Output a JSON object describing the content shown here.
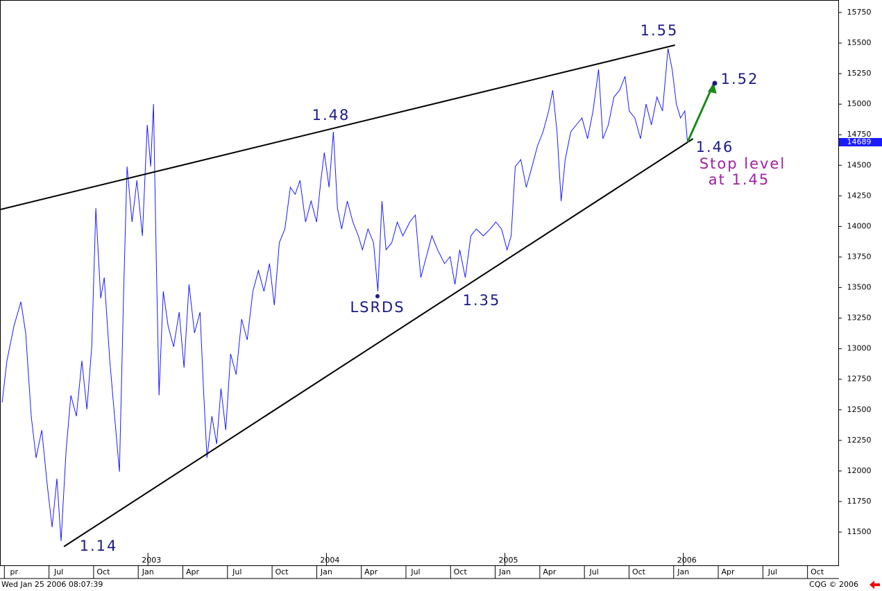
{
  "chart_data": {
    "type": "line",
    "series": [
      {
        "name": null,
        "color": "#1a1aff",
        "x": [
          2002.183,
          2002.21,
          2002.249,
          2002.288,
          2002.315,
          2002.346,
          2002.373,
          2002.405,
          2002.436,
          2002.463,
          2002.49,
          2002.513,
          2002.541,
          2002.568,
          2002.599,
          2002.63,
          2002.658,
          2002.685,
          2002.708,
          2002.735,
          2002.755,
          2002.786,
          2002.813,
          2002.84,
          2002.864,
          2002.883,
          2002.911,
          2002.938,
          2002.969,
          2002.996,
          2003.015,
          2003.031,
          2003.047,
          2003.062,
          2003.086,
          2003.113,
          2003.144,
          2003.175,
          2003.202,
          2003.23,
          2003.261,
          2003.292,
          2003.311,
          2003.331,
          2003.358,
          2003.385,
          2003.409,
          2003.436,
          2003.463,
          2003.494,
          2003.525,
          2003.556,
          2003.588,
          2003.619,
          2003.65,
          2003.681,
          2003.708,
          2003.736,
          2003.767,
          2003.798,
          2003.825,
          2003.852,
          2003.883,
          2003.914,
          2003.945,
          2003.969,
          2003.988,
          2004.015,
          2004.039,
          2004.062,
          2004.085,
          2004.117,
          2004.148,
          2004.179,
          2004.202,
          2004.233,
          2004.264,
          2004.288,
          2004.311,
          2004.334,
          2004.366,
          2004.397,
          2004.428,
          2004.467,
          2004.498,
          2004.529,
          2004.56,
          2004.591,
          2004.623,
          2004.662,
          2004.693,
          2004.72,
          2004.747,
          2004.778,
          2004.809,
          2004.84,
          2004.879,
          2004.918,
          2004.949,
          2004.981,
          2005.012,
          2005.035,
          2005.058,
          2005.089,
          2005.12,
          2005.152,
          2005.183,
          2005.214,
          2005.245,
          2005.268,
          2005.292,
          2005.315,
          2005.338,
          2005.369,
          2005.4,
          2005.432,
          2005.463,
          2005.494,
          2005.525,
          2005.549,
          2005.58,
          2005.611,
          2005.643,
          2005.673,
          2005.697,
          2005.728,
          2005.76,
          2005.791,
          2005.821,
          2005.852,
          2005.883,
          2005.914,
          2005.937,
          2005.961,
          2005.984,
          2006.008,
          2006.023
        ],
        "values": [
          12561,
          12901,
          13185,
          13384,
          13128,
          12448,
          12107,
          12334,
          11880,
          11540,
          11937,
          11426,
          12164,
          12618,
          12448,
          12901,
          12504,
          13015,
          14150,
          13412,
          13582,
          12901,
          12448,
          11994,
          13469,
          14490,
          14036,
          14377,
          13923,
          14831,
          14490,
          15001,
          13696,
          12618,
          13469,
          13185,
          13015,
          13299,
          12845,
          13526,
          13128,
          13299,
          12674,
          12107,
          12448,
          12221,
          12674,
          12334,
          12958,
          12788,
          13242,
          13072,
          13469,
          13639,
          13469,
          13696,
          13355,
          13866,
          13979,
          14320,
          14263,
          14377,
          14036,
          14207,
          14036,
          14377,
          14604,
          14320,
          14774,
          14150,
          13979,
          14207,
          14036,
          13923,
          13809,
          13979,
          13866,
          13469,
          14207,
          13809,
          13866,
          14036,
          13923,
          14036,
          14093,
          13582,
          13753,
          13923,
          13809,
          13696,
          13753,
          13526,
          13809,
          13582,
          13923,
          13979,
          13923,
          13979,
          14036,
          13979,
          13809,
          13923,
          14490,
          14547,
          14320,
          14490,
          14660,
          14774,
          14944,
          15114,
          14774,
          14207,
          14547,
          14774,
          14831,
          14887,
          14717,
          14944,
          15285,
          14717,
          14831,
          15058,
          15114,
          15228,
          14944,
          14887,
          14717,
          15001,
          14831,
          15058,
          14944,
          15455,
          15285,
          15001,
          14887,
          14944,
          14689
        ]
      }
    ],
    "trendlines": [
      {
        "color": "#000000",
        "x": [
          2002.171,
          2005.953
        ],
        "values": [
          14138,
          15483
        ]
      },
      {
        "color": "#000000",
        "x": [
          2002.529,
          2006.054
        ],
        "values": [
          11381,
          14717
        ]
      },
      {
        "color": "#1a8a1a",
        "x": [
          2006.023,
          2006.171
        ],
        "values": [
          14689,
          15171
        ]
      }
    ],
    "last_value": 14689,
    "xlim": [
      2002.171,
      2006.868
    ],
    "ylim": [
      11228,
      15852
    ],
    "yticks": [
      11500,
      11750,
      12000,
      12250,
      12500,
      12750,
      13000,
      13250,
      13500,
      13750,
      14000,
      14250,
      14500,
      14750,
      15000,
      15250,
      15500,
      15750
    ],
    "xticks": [
      {
        "value": 2002.25,
        "label": "pr"
      },
      {
        "value": 2002.5,
        "label": "Jul"
      },
      {
        "value": 2002.75,
        "label": "Oct"
      },
      {
        "value": 2003.0,
        "label": "Jan"
      },
      {
        "value": 2003.25,
        "label": "Apr"
      },
      {
        "value": 2003.5,
        "label": "Jul"
      },
      {
        "value": 2003.75,
        "label": "Oct"
      },
      {
        "value": 2004.0,
        "label": "Jan"
      },
      {
        "value": 2004.25,
        "label": "Apr"
      },
      {
        "value": 2004.5,
        "label": "Jul"
      },
      {
        "value": 2004.75,
        "label": "Oct"
      },
      {
        "value": 2005.0,
        "label": "Jan"
      },
      {
        "value": 2005.25,
        "label": "Apr"
      },
      {
        "value": 2005.5,
        "label": "Jul"
      },
      {
        "value": 2005.75,
        "label": "Oct"
      },
      {
        "value": 2006.0,
        "label": "Jan"
      },
      {
        "value": 2006.25,
        "label": "Apr"
      },
      {
        "value": 2006.5,
        "label": "Jul"
      },
      {
        "value": 2006.75,
        "label": "Oct"
      }
    ],
    "year_ticks": [
      2003,
      2004,
      2005,
      2006
    ],
    "annotations": [
      "1.55",
      "1.52",
      "1.48",
      "1.46",
      "Stop level",
      "at 1.45",
      "LSRDS",
      "1.35",
      "1.14"
    ],
    "timestamp": "Wed Jan 25 2006 08:07:39",
    "source": "CQG © 2006"
  }
}
